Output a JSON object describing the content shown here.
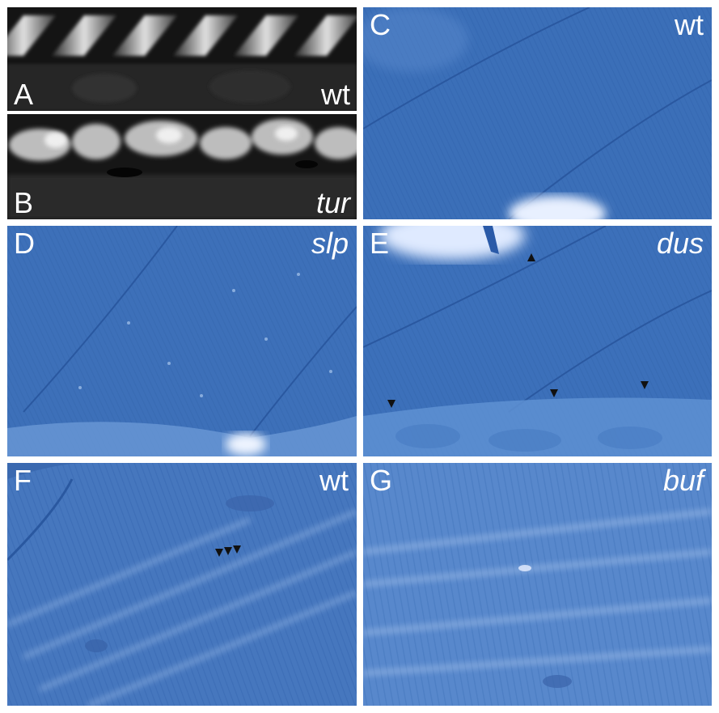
{
  "panels": {
    "a": {
      "letter": "A",
      "genotype": "wt"
    },
    "b": {
      "letter": "B",
      "genotype": "tur"
    },
    "c": {
      "letter": "C",
      "genotype": "wt"
    },
    "d": {
      "letter": "D",
      "genotype": "slp"
    },
    "e": {
      "letter": "E",
      "genotype": "dus"
    },
    "f": {
      "letter": "F",
      "genotype": "wt"
    },
    "g": {
      "letter": "G",
      "genotype": "buf"
    }
  },
  "colors": {
    "fluorescence_background": "#151515",
    "fluorescence_signal": "#d8d8d8",
    "stained_muscle": "#3a6fb8",
    "stained_muscle_light": "#6b9ad6",
    "arrowhead": "#111111",
    "label": "#ffffff"
  },
  "arrowheads": {
    "e": [
      {
        "direction": "up"
      },
      {
        "direction": "down"
      },
      {
        "direction": "down"
      },
      {
        "direction": "down"
      }
    ],
    "f": [
      {
        "direction": "down"
      },
      {
        "direction": "down"
      },
      {
        "direction": "down"
      }
    ]
  }
}
